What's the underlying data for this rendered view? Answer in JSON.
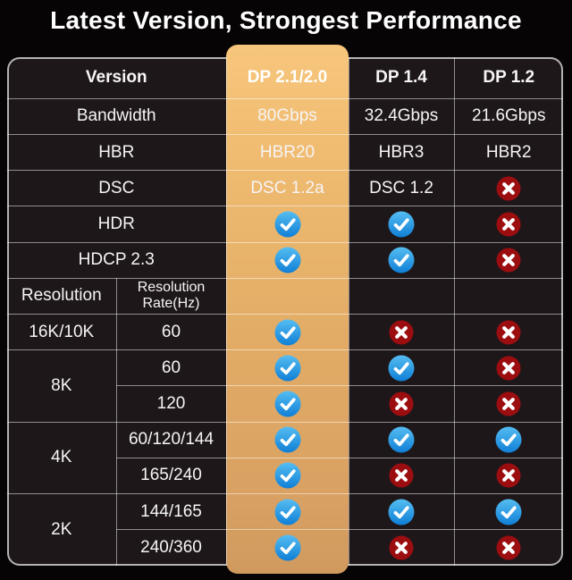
{
  "title": "Latest Version, Strongest Performance",
  "colors": {
    "background": "#070405",
    "table_bg": "#1e1719",
    "grid_line": "#8f8d8e",
    "highlight_top": "#f7c67c",
    "highlight_bottom": "#d09a5f",
    "check_blue_light": "#55bdf2",
    "check_blue_dark": "#0f7fd6",
    "cross_red": "#9c0d10",
    "text": "#f6f4f5"
  },
  "table": {
    "header": {
      "version": "Version",
      "dp21": "DP 2.1/2.0",
      "dp14": "DP 1.4",
      "dp12": "DP 1.2"
    },
    "spec_rows": [
      {
        "label": "Bandwidth",
        "dp21": "80Gbps",
        "dp14": "32.4Gbps",
        "dp12": "21.6Gbps"
      },
      {
        "label": "HBR",
        "dp21": "HBR20",
        "dp14": "HBR3",
        "dp12": "HBR2"
      },
      {
        "label": "DSC",
        "dp21": "DSC 1.2a",
        "dp14": "DSC 1.2",
        "dp12": "cross"
      },
      {
        "label": "HDR",
        "dp21": "check",
        "dp14": "check",
        "dp12": "cross"
      },
      {
        "label": "HDCP 2.3",
        "dp21": "check",
        "dp14": "check",
        "dp12": "cross"
      }
    ],
    "resolution_header": {
      "resolution_label": "Resolution",
      "rate_label": "Resolution Rate(Hz)"
    },
    "resolution_rows": [
      {
        "resolution": "16K/10K",
        "rate": "60",
        "dp21": "check",
        "dp14": "cross",
        "dp12": "cross"
      },
      {
        "resolution": "8K",
        "rate": "60",
        "dp21": "check",
        "dp14": "check",
        "dp12": "cross"
      },
      {
        "resolution": "",
        "rate": "120",
        "dp21": "check",
        "dp14": "cross",
        "dp12": "cross"
      },
      {
        "resolution": "4K",
        "rate": "60/120/144",
        "dp21": "check",
        "dp14": "check",
        "dp12": "check"
      },
      {
        "resolution": "",
        "rate": "165/240",
        "dp21": "check",
        "dp14": "cross",
        "dp12": "cross"
      },
      {
        "resolution": "2K",
        "rate": "144/165",
        "dp21": "check",
        "dp14": "check",
        "dp12": "check"
      },
      {
        "resolution": "",
        "rate": "240/360",
        "dp21": "check",
        "dp14": "cross",
        "dp12": "cross"
      }
    ]
  },
  "chart_data": {
    "type": "table",
    "title": "Latest Version, Strongest Performance",
    "columns": [
      "Version",
      "DP 2.1/2.0",
      "DP 1.4",
      "DP 1.2"
    ],
    "rows": [
      [
        "Bandwidth",
        "80Gbps",
        "32.4Gbps",
        "21.6Gbps"
      ],
      [
        "HBR",
        "HBR20",
        "HBR3",
        "HBR2"
      ],
      [
        "DSC",
        "DSC 1.2a",
        "DSC 1.2",
        "no"
      ],
      [
        "HDR",
        "yes",
        "yes",
        "no"
      ],
      [
        "HDCP 2.3",
        "yes",
        "yes",
        "no"
      ],
      [
        "16K/10K @ 60Hz",
        "yes",
        "no",
        "no"
      ],
      [
        "8K @ 60Hz",
        "yes",
        "yes",
        "no"
      ],
      [
        "8K @ 120Hz",
        "yes",
        "no",
        "no"
      ],
      [
        "4K @ 60/120/144Hz",
        "yes",
        "yes",
        "yes"
      ],
      [
        "4K @ 165/240Hz",
        "yes",
        "no",
        "no"
      ],
      [
        "2K @ 144/165Hz",
        "yes",
        "yes",
        "yes"
      ],
      [
        "2K @ 240/360Hz",
        "yes",
        "no",
        "no"
      ]
    ],
    "legend": {
      "check": "supported",
      "cross": "not supported"
    },
    "highlighted_column": "DP 2.1/2.0"
  }
}
